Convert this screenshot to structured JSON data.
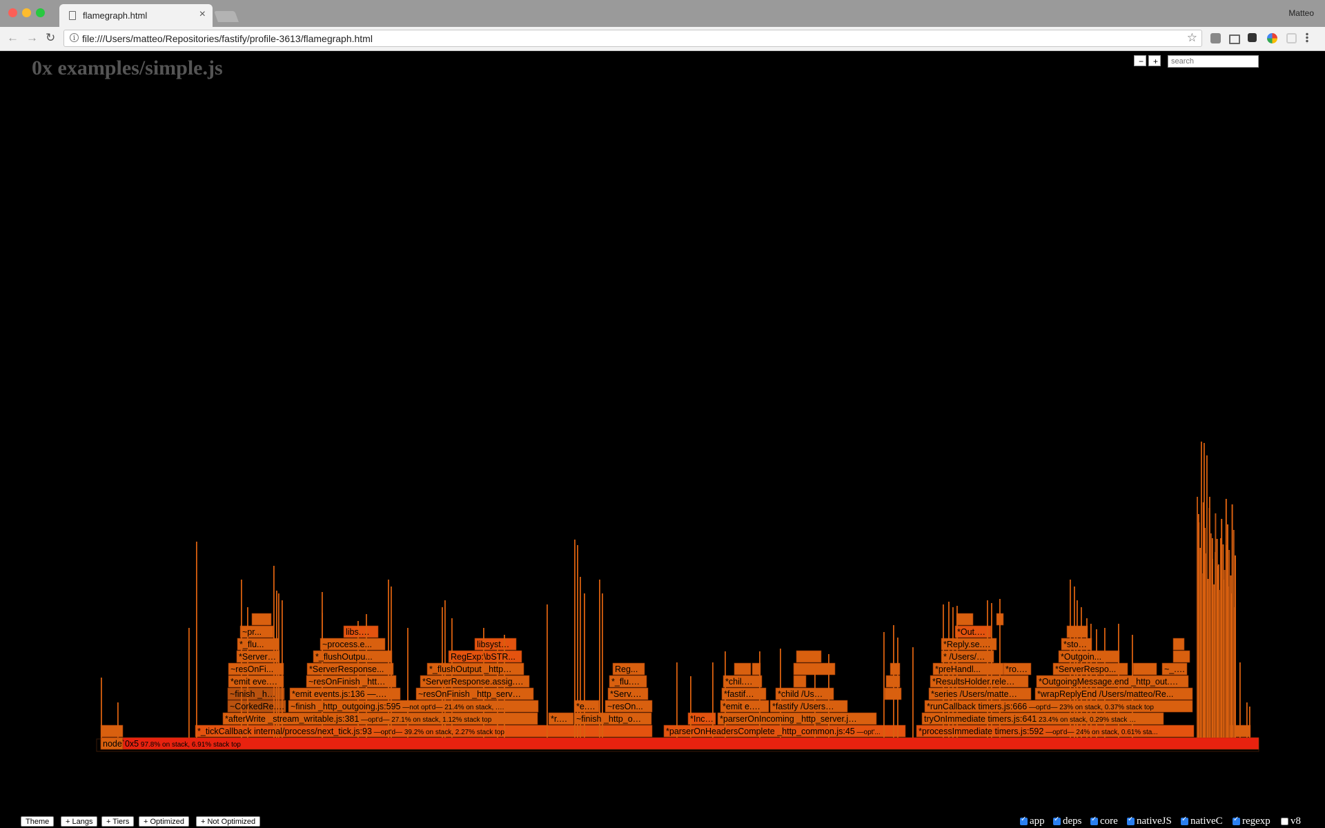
{
  "browser": {
    "tab_title": "flamegraph.html",
    "tab_close": "×",
    "user": "Matteo",
    "url": "file:///Users/matteo/Repositories/fastify/profile-3613/flamegraph.html",
    "back": "←",
    "forward": "→",
    "reload": "↻",
    "info": "i",
    "star": "☆",
    "colors": {
      "close": "#fc5f57",
      "minimize": "#fdbc2e",
      "zoom": "#28c840"
    }
  },
  "page": {
    "title": "0x examples/simple.js",
    "zoom_out": "−",
    "zoom_in": "+",
    "search_placeholder": "search"
  },
  "flamegraph": {
    "colors": {
      "root": "#e8220f",
      "hot": "#e4530f",
      "warm": "#d9600f",
      "dim": "#b9520f",
      "idle": "#3a1a07"
    },
    "labels": [
      {
        "text": "node`0x5",
        "meta": " 97.8% on stack, 6.91% stack top"
      },
      {
        "text": "*_tickCallback internal/process/next_tick.js:93",
        "meta": " —opt'd— 39.2% on stack, 2.27% stack top"
      },
      {
        "text": "*parserOnHeadersComplete _http_common.js:45",
        "meta": " —opt'..."
      },
      {
        "text": "*processImmediate timers.js:592",
        "meta": " —opt'd— 24% on stack, 0.61% sta..."
      },
      {
        "text": "*afterWrite _stream_writable.js:381",
        "meta": " —opt'd— 27.1% on stack, 1.12% stack top"
      },
      {
        "text": "*r...",
        "meta": ""
      },
      {
        "text": "~finish _http_o...",
        "meta": ""
      },
      {
        "text": "*Inc...",
        "meta": ""
      },
      {
        "text": "*parserOnIncoming _http_server.j...",
        "meta": ""
      },
      {
        "text": "tryOnImmediate timers.js:641",
        "meta": " 23.4% on stack, 0.29% stack top"
      },
      {
        "text": "~CorkedRe...",
        "meta": ""
      },
      {
        "text": "~finish _http_outgoing.js:595",
        "meta": " —not opt'd— 21.4% on stack, ..."
      },
      {
        "text": "*e...",
        "meta": ""
      },
      {
        "text": "~resOn...",
        "meta": ""
      },
      {
        "text": "*emit e...",
        "meta": ""
      },
      {
        "text": "*fastify /Users/...",
        "meta": ""
      },
      {
        "text": "*runCallback timers.js:666",
        "meta": " —opt'd— 23% on stack, 0.37% stack top"
      },
      {
        "text": "~finish _ht...",
        "meta": ""
      },
      {
        "text": "*emit events.js:136 —...",
        "meta": ""
      },
      {
        "text": "~resOnFinish _http_serv...",
        "meta": ""
      },
      {
        "text": "*Serv...",
        "meta": ""
      },
      {
        "text": "*fastify ...",
        "meta": ""
      },
      {
        "text": "*child /Use...",
        "meta": ""
      },
      {
        "text": "*series /Users/matte...",
        "meta": ""
      },
      {
        "text": "*wrapReplyEnd /Users/matteo/Re...",
        "meta": ""
      },
      {
        "text": "*emit eve...",
        "meta": ""
      },
      {
        "text": "~resOnFinish _htt...",
        "meta": ""
      },
      {
        "text": "*ServerResponse.assig...",
        "meta": ""
      },
      {
        "text": "*_flu...",
        "meta": ""
      },
      {
        "text": "*chil...",
        "meta": ""
      },
      {
        "text": "*ResultsHolder.relea...",
        "meta": ""
      },
      {
        "text": "*OutgoingMessage.end _http_out...",
        "meta": ""
      },
      {
        "text": "~resOnFi...",
        "meta": ""
      },
      {
        "text": "*ServerResponse...",
        "meta": ""
      },
      {
        "text": "*_flushOutput _http...",
        "meta": ""
      },
      {
        "text": "Reg...",
        "meta": ""
      },
      {
        "text": "*preHandl...",
        "meta": ""
      },
      {
        "text": "*ro...",
        "meta": ""
      },
      {
        "text": "*ServerRespo...",
        "meta": ""
      },
      {
        "text": "~_...",
        "meta": ""
      },
      {
        "text": "*Server...",
        "meta": ""
      },
      {
        "text": "*_flushOutpu...",
        "meta": ""
      },
      {
        "text": "RegExp:\\bSTR...",
        "meta": ""
      },
      {
        "text": "* /Users/...",
        "meta": ""
      },
      {
        "text": "*Outgoin...",
        "meta": ""
      },
      {
        "text": "*_flu...",
        "meta": ""
      },
      {
        "text": "~process.e...",
        "meta": ""
      },
      {
        "text": "libsyst...",
        "meta": ""
      },
      {
        "text": "*Reply.se...",
        "meta": ""
      },
      {
        "text": "*sto...",
        "meta": ""
      },
      {
        "text": "~pr...",
        "meta": ""
      },
      {
        "text": "libs...",
        "meta": ""
      },
      {
        "text": "*Out...",
        "meta": ""
      }
    ]
  },
  "footer": {
    "buttons": [
      "Theme",
      "+ Langs",
      "+ Tiers",
      "+ Optimized",
      "+ Not Optimized"
    ],
    "filters": [
      {
        "label": "app",
        "checked": true
      },
      {
        "label": "deps",
        "checked": true
      },
      {
        "label": "core",
        "checked": true
      },
      {
        "label": "nativeJS",
        "checked": true
      },
      {
        "label": "nativeC",
        "checked": true
      },
      {
        "label": "regexp",
        "checked": true
      },
      {
        "label": "v8",
        "checked": false
      }
    ]
  }
}
